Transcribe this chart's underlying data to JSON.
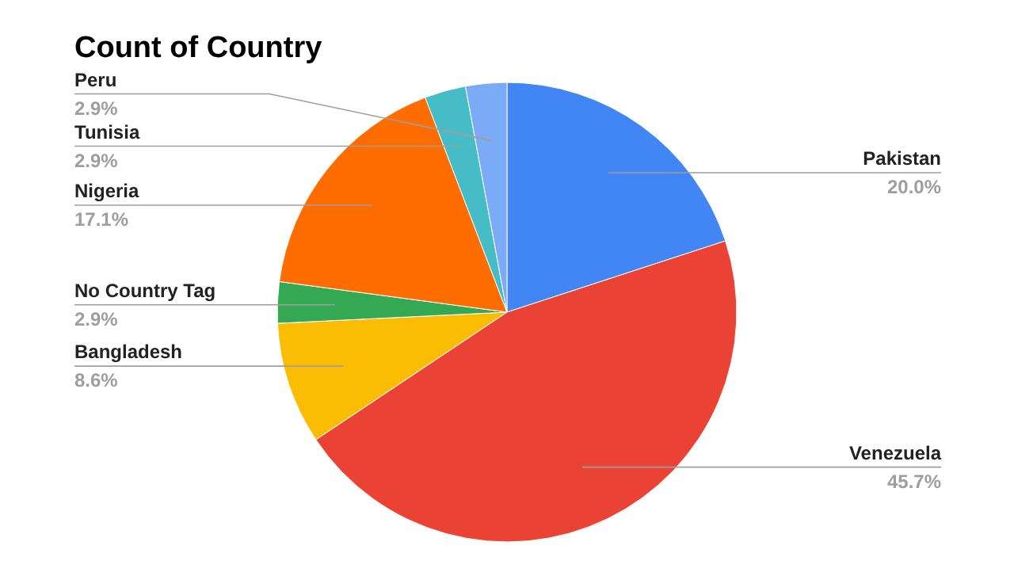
{
  "chart_data": {
    "type": "pie",
    "title": "Count of Country",
    "categories": [
      "Pakistan",
      "Venezuela",
      "Bangladesh",
      "No Country Tag",
      "Nigeria",
      "Tunisia",
      "Peru"
    ],
    "values": [
      20.0,
      45.7,
      8.6,
      2.9,
      17.1,
      2.9,
      2.9
    ],
    "value_labels": [
      "20.0%",
      "45.7%",
      "8.6%",
      "2.9%",
      "17.1%",
      "2.9%",
      "2.9%"
    ],
    "colors": [
      "#4285f4",
      "#ea4335",
      "#fbbc04",
      "#34a853",
      "#ff6d01",
      "#46bdc6",
      "#7baaf7"
    ]
  }
}
